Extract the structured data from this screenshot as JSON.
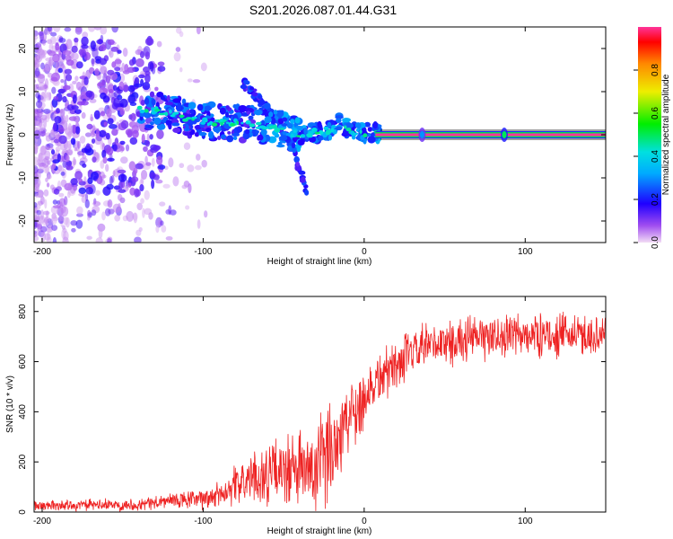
{
  "title": "S201.2026.087.01.44.G31",
  "chart_data": [
    {
      "type": "heatmap",
      "name": "spectrogram",
      "xlabel": "Height of straight line (km)",
      "ylabel": "Frequency (Hz)",
      "xlim": [
        -205,
        150
      ],
      "ylim": [
        -25,
        25
      ],
      "xticks": [
        -200,
        -100,
        0,
        100
      ],
      "yticks": [
        -20,
        -10,
        0,
        10,
        20
      ],
      "colorbar": {
        "label": "Normalized spectral amplitude",
        "range": [
          0,
          1
        ],
        "ticks": [
          "0.0",
          "0.2",
          "0.4",
          "0.6",
          "0.8"
        ]
      },
      "features": {
        "carrier_line": {
          "frequency_hz": 0,
          "x_start_km": 10,
          "x_end_km": 150,
          "amplitude": 1.0
        },
        "main_track": [
          [
            -140,
            6
          ],
          [
            -120,
            5
          ],
          [
            -100,
            3
          ],
          [
            -80,
            3
          ],
          [
            -60,
            2
          ],
          [
            -40,
            0
          ],
          [
            -20,
            1
          ],
          [
            -15,
            3
          ],
          [
            -10,
            1
          ],
          [
            0,
            0.5
          ],
          [
            10,
            0.2
          ]
        ],
        "secondary_track": [
          [
            -75,
            12
          ],
          [
            -65,
            8
          ],
          [
            -55,
            4
          ],
          [
            -45,
            -2
          ],
          [
            -40,
            -8
          ],
          [
            -35,
            -14
          ]
        ],
        "spikes": [
          {
            "x_km": 36,
            "amplitude": 0.3
          },
          {
            "x_km": 87,
            "amplitude": 0.5
          }
        ]
      }
    },
    {
      "type": "line",
      "name": "snr",
      "xlabel": "Height of straight line (km)",
      "ylabel": "SNR (10 * v/v)",
      "xlim": [
        -205,
        150
      ],
      "ylim": [
        0,
        860
      ],
      "xticks": [
        -200,
        -100,
        0,
        100
      ],
      "yticks": [
        0,
        200,
        400,
        600,
        800
      ],
      "color": "#ee2222",
      "mean_profile": [
        [
          -205,
          25
        ],
        [
          -140,
          30
        ],
        [
          -120,
          45
        ],
        [
          -100,
          50
        ],
        [
          -90,
          70
        ],
        [
          -80,
          110
        ],
        [
          -60,
          150
        ],
        [
          -40,
          170
        ],
        [
          -30,
          150
        ],
        [
          -20,
          260
        ],
        [
          -10,
          380
        ],
        [
          0,
          460
        ],
        [
          10,
          540
        ],
        [
          20,
          590
        ],
        [
          30,
          630
        ],
        [
          40,
          660
        ],
        [
          60,
          685
        ],
        [
          80,
          700
        ],
        [
          100,
          705
        ],
        [
          120,
          705
        ],
        [
          150,
          705
        ]
      ],
      "noise_profile": [
        [
          -205,
          25
        ],
        [
          -140,
          30
        ],
        [
          -100,
          50
        ],
        [
          -80,
          90
        ],
        [
          -60,
          150
        ],
        [
          -40,
          190
        ],
        [
          -30,
          230
        ],
        [
          -20,
          250
        ],
        [
          -10,
          200
        ],
        [
          0,
          160
        ],
        [
          20,
          120
        ],
        [
          60,
          110
        ],
        [
          150,
          100
        ]
      ]
    }
  ]
}
